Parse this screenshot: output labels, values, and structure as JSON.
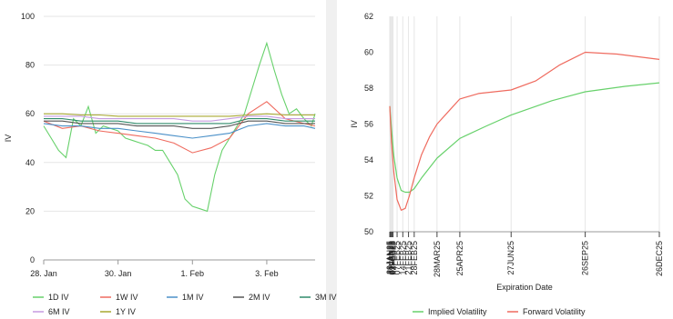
{
  "chart_data": [
    {
      "type": "line",
      "title": "",
      "xlabel": "",
      "ylabel": "IV",
      "ylim": [
        0,
        100
      ],
      "y_ticks": [
        "0",
        "20",
        "40",
        "60",
        "80",
        "100"
      ],
      "x_tick_labels": [
        "28. Jan",
        "30. Jan",
        "1. Feb",
        "3. Feb"
      ],
      "x_range_days": [
        0,
        7.3
      ],
      "x_tick_days": [
        0,
        2,
        4,
        6
      ],
      "grid": true,
      "legend_position": "bottom-left",
      "series": [
        {
          "name": "1D IV",
          "color": "#67d16b",
          "x": [
            0,
            0.2,
            0.4,
            0.6,
            0.8,
            1.0,
            1.2,
            1.4,
            1.6,
            1.8,
            2.0,
            2.2,
            2.4,
            2.6,
            2.8,
            3.0,
            3.2,
            3.4,
            3.6,
            3.8,
            4.0,
            4.2,
            4.4,
            4.6,
            4.8,
            5.0,
            5.2,
            5.4,
            5.6,
            5.8,
            6.0,
            6.2,
            6.4,
            6.6,
            6.8,
            7.0,
            7.2,
            7.3
          ],
          "values": [
            55,
            50,
            45,
            42,
            58,
            55,
            63,
            52,
            55,
            54,
            53,
            50,
            49,
            48,
            47,
            45,
            45,
            40,
            35,
            25,
            22,
            21,
            20,
            35,
            45,
            50,
            55,
            60,
            70,
            80,
            89,
            78,
            68,
            60,
            62,
            58,
            55,
            60
          ]
        },
        {
          "name": "1W IV",
          "color": "#ef6b5f",
          "x": [
            0,
            0.5,
            1.0,
            1.5,
            2.0,
            2.5,
            3.0,
            3.5,
            4.0,
            4.5,
            5.0,
            5.5,
            6.0,
            6.5,
            7.0,
            7.3
          ],
          "values": [
            57,
            54,
            55,
            53,
            52,
            51,
            50,
            48,
            44,
            46,
            50,
            60,
            65,
            58,
            56,
            55
          ]
        },
        {
          "name": "1M IV",
          "color": "#4a90c8",
          "x": [
            0,
            0.5,
            1.0,
            1.5,
            2.0,
            2.5,
            3.0,
            3.5,
            4.0,
            4.5,
            5.0,
            5.5,
            6.0,
            6.5,
            7.0,
            7.3
          ],
          "values": [
            56,
            55,
            55,
            54,
            54,
            53,
            52,
            51,
            50,
            51,
            52,
            55,
            56,
            55,
            55,
            54
          ]
        },
        {
          "name": "2M IV",
          "color": "#555555",
          "x": [
            0,
            0.5,
            1.0,
            1.5,
            2.0,
            2.5,
            3.0,
            3.5,
            4.0,
            4.5,
            5.0,
            5.5,
            6.0,
            6.5,
            7.0,
            7.3
          ],
          "values": [
            57,
            57,
            56,
            56,
            56,
            55,
            55,
            55,
            54,
            54,
            55,
            57,
            57,
            56,
            56,
            56
          ]
        },
        {
          "name": "3M IV",
          "color": "#2f8a6a",
          "x": [
            0,
            0.5,
            1.0,
            1.5,
            2.0,
            2.5,
            3.0,
            3.5,
            4.0,
            4.5,
            5.0,
            5.5,
            6.0,
            6.5,
            7.0,
            7.3
          ],
          "values": [
            58,
            58,
            57,
            57,
            57,
            56,
            56,
            56,
            56,
            56,
            56,
            58,
            58,
            57,
            57,
            57
          ]
        },
        {
          "name": "6M IV",
          "color": "#c59be0",
          "x": [
            0,
            0.5,
            1.0,
            1.5,
            2.0,
            2.5,
            3.0,
            3.5,
            4.0,
            4.5,
            5.0,
            5.5,
            6.0,
            6.5,
            7.0,
            7.3
          ],
          "values": [
            59,
            59,
            59,
            58,
            58,
            58,
            58,
            58,
            57,
            57,
            58,
            59,
            59,
            58,
            58,
            58
          ]
        },
        {
          "name": "1Y IV",
          "color": "#a8a830",
          "x": [
            0,
            0.5,
            1.0,
            1.5,
            2.0,
            2.5,
            3.0,
            3.5,
            4.0,
            4.5,
            5.0,
            5.5,
            6.0,
            6.5,
            7.0,
            7.3
          ],
          "values": [
            60,
            60,
            59.5,
            59.5,
            59,
            59,
            59,
            59,
            59,
            59,
            59,
            59.5,
            60,
            59.5,
            59.5,
            59.5
          ]
        }
      ]
    },
    {
      "type": "line",
      "title": "",
      "xlabel": "Expiration Date",
      "ylabel": "IV",
      "ylim": [
        50,
        62
      ],
      "y_ticks": [
        "50",
        "52",
        "54",
        "56",
        "58",
        "60",
        "62"
      ],
      "x_tick_labels": [
        "29JAN25",
        "30JAN25",
        "31JAN25",
        "01FEB25",
        "02FEB25",
        "07FEB25",
        "14FEB25",
        "21FEB25",
        "28FEB25",
        "28MAR25",
        "25APR25",
        "27JUN25",
        "26SEP25",
        "26DEC25"
      ],
      "x_tick_days": [
        1,
        2,
        3,
        4,
        5,
        10,
        17,
        24,
        31,
        59,
        87,
        150,
        241,
        332
      ],
      "grid": true,
      "legend_position": "bottom",
      "series": [
        {
          "name": "Implied Volatility",
          "color": "#67d16b",
          "x": [
            1,
            3,
            6,
            10,
            15,
            20,
            25,
            31,
            40,
            59,
            87,
            120,
            150,
            200,
            241,
            290,
            332
          ],
          "values": [
            57.0,
            55.8,
            54.2,
            53.0,
            52.3,
            52.2,
            52.2,
            52.4,
            53.0,
            54.1,
            55.2,
            55.9,
            56.5,
            57.3,
            57.8,
            58.1,
            58.3
          ]
        },
        {
          "name": "Forward Volatility",
          "color": "#ef6b5f",
          "x": [
            1,
            3,
            6,
            10,
            15,
            20,
            25,
            31,
            40,
            50,
            59,
            75,
            87,
            110,
            150,
            180,
            210,
            241,
            280,
            332
          ],
          "values": [
            57.0,
            55.0,
            53.3,
            51.8,
            51.2,
            51.3,
            52.0,
            53.0,
            54.3,
            55.3,
            56.0,
            56.8,
            57.4,
            57.7,
            57.9,
            58.4,
            59.3,
            60.0,
            59.9,
            59.6
          ]
        }
      ]
    }
  ]
}
